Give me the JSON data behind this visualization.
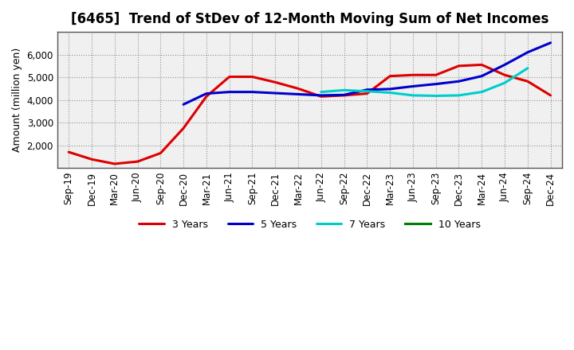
{
  "title": "[6465]  Trend of StDev of 12-Month Moving Sum of Net Incomes",
  "ylabel": "Amount (million yen)",
  "background_color": "#ffffff",
  "grid_color": "#888888",
  "plot_bg_color": "#f0f0f0",
  "x_labels": [
    "Sep-19",
    "Dec-19",
    "Mar-20",
    "Jun-20",
    "Sep-20",
    "Dec-20",
    "Mar-21",
    "Jun-21",
    "Sep-21",
    "Dec-21",
    "Mar-22",
    "Jun-22",
    "Sep-22",
    "Dec-22",
    "Mar-23",
    "Jun-23",
    "Sep-23",
    "Dec-23",
    "Mar-24",
    "Jun-24",
    "Sep-24",
    "Dec-24"
  ],
  "series": {
    "3 Years": {
      "color": "#dd0000",
      "linewidth": 2.2,
      "data_x": [
        0,
        1,
        2,
        3,
        4,
        5,
        6,
        7,
        8,
        9,
        10,
        11,
        12,
        13,
        14,
        15,
        16,
        17,
        18,
        19,
        20,
        21
      ],
      "data_y": [
        1700,
        1380,
        1180,
        1280,
        1650,
        2750,
        4150,
        5020,
        5020,
        4780,
        4500,
        4150,
        4200,
        4280,
        5050,
        5100,
        5100,
        5500,
        5550,
        5100,
        4820,
        4200
      ]
    },
    "5 Years": {
      "color": "#0000cc",
      "linewidth": 2.2,
      "data_x": [
        5,
        6,
        7,
        8,
        9,
        10,
        11,
        12,
        13,
        14,
        15,
        16,
        17,
        18,
        19,
        20,
        21
      ],
      "data_y": [
        3800,
        4280,
        4350,
        4350,
        4300,
        4250,
        4200,
        4220,
        4450,
        4480,
        4600,
        4700,
        4820,
        5050,
        5550,
        6100,
        6520
      ]
    },
    "7 Years": {
      "color": "#00cccc",
      "linewidth": 2.2,
      "data_x": [
        11,
        12,
        13,
        14,
        15,
        16,
        17,
        18,
        19,
        20
      ],
      "data_y": [
        4350,
        4430,
        4380,
        4320,
        4200,
        4180,
        4200,
        4350,
        4750,
        5400
      ]
    },
    "10 Years": {
      "color": "#008000",
      "linewidth": 2.2,
      "data_x": [],
      "data_y": []
    }
  },
  "ylim": [
    1000,
    7000
  ],
  "yticks": [
    2000,
    3000,
    4000,
    5000,
    6000
  ],
  "ytick_labels": [
    "2,000",
    "3,000",
    "4,000",
    "5,000",
    "6,000"
  ],
  "legend_entries": [
    "3 Years",
    "5 Years",
    "7 Years",
    "10 Years"
  ],
  "legend_colors": [
    "#dd0000",
    "#0000cc",
    "#00cccc",
    "#008000"
  ],
  "title_fontsize": 12,
  "ylabel_fontsize": 9,
  "tick_fontsize": 8.5,
  "legend_fontsize": 9
}
